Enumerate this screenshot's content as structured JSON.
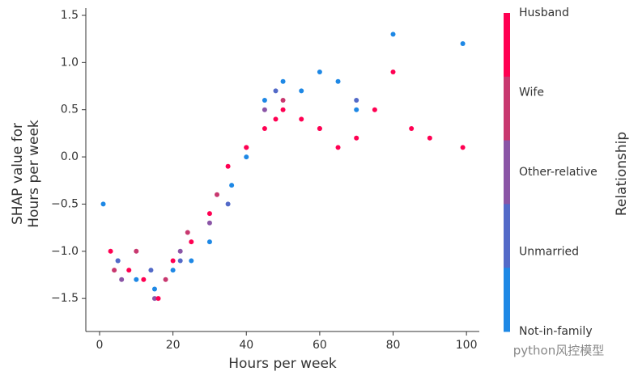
{
  "chart_data": {
    "type": "scatter",
    "xlabel": "Hours per week",
    "ylabel": [
      "SHAP value for",
      "Hours per week"
    ],
    "colorbar_label": "Relationship",
    "watermark": "python风控模型",
    "xlim": [
      -3.75,
      103.5
    ],
    "ylim": [
      -1.85,
      1.577
    ],
    "xticks": [
      0,
      20,
      40,
      60,
      80,
      100
    ],
    "yticks": [
      {
        "value": -1.5,
        "label": "−1.5"
      },
      {
        "value": -1,
        "label": "−1.0"
      },
      {
        "value": -0.5,
        "label": "−0.5"
      },
      {
        "value": 0,
        "label": "0.0"
      },
      0.5,
      {
        "value": 1,
        "label": "1.0"
      },
      1.5
    ],
    "series": [
      {
        "name": "Husband",
        "color": "#ff0052",
        "x": [
          3,
          8,
          12,
          16,
          20,
          25,
          30,
          35,
          40,
          45,
          48,
          50,
          55,
          60,
          65,
          70,
          75,
          80,
          85,
          90,
          99
        ],
        "values": [
          -1.0,
          -1.2,
          -1.3,
          -1.5,
          -1.1,
          -0.9,
          -0.6,
          -0.1,
          0.1,
          0.3,
          0.4,
          0.5,
          0.4,
          0.3,
          0.1,
          0.2,
          0.5,
          0.9,
          0.3,
          0.2,
          0.1
        ]
      },
      {
        "name": "Wife",
        "color": "#c8386f",
        "x": [
          4,
          10,
          18,
          24,
          32,
          40,
          50,
          60
        ],
        "values": [
          -1.2,
          -1.0,
          -1.3,
          -0.8,
          -0.4,
          0.1,
          0.6,
          0.3
        ]
      },
      {
        "name": "Other-relative",
        "color": "#8a55a6",
        "x": [
          6,
          15,
          22,
          30,
          45
        ],
        "values": [
          -1.3,
          -1.5,
          -1.0,
          -0.7,
          0.5
        ]
      },
      {
        "name": "Unmarried",
        "color": "#536ac8",
        "x": [
          5,
          14,
          22,
          35,
          48,
          70
        ],
        "values": [
          -1.1,
          -1.2,
          -1.1,
          -0.5,
          0.7,
          0.6
        ]
      },
      {
        "name": "Not-in-family",
        "color": "#1e88e5",
        "x": [
          1,
          5,
          10,
          15,
          20,
          25,
          30,
          36,
          40,
          45,
          50,
          55,
          60,
          65,
          70,
          80,
          99
        ],
        "values": [
          -0.5,
          -1.1,
          -1.3,
          -1.4,
          -1.2,
          -1.1,
          -0.9,
          -0.3,
          0.0,
          0.6,
          0.8,
          0.7,
          0.9,
          0.8,
          0.5,
          1.3,
          1.2
        ]
      }
    ]
  }
}
